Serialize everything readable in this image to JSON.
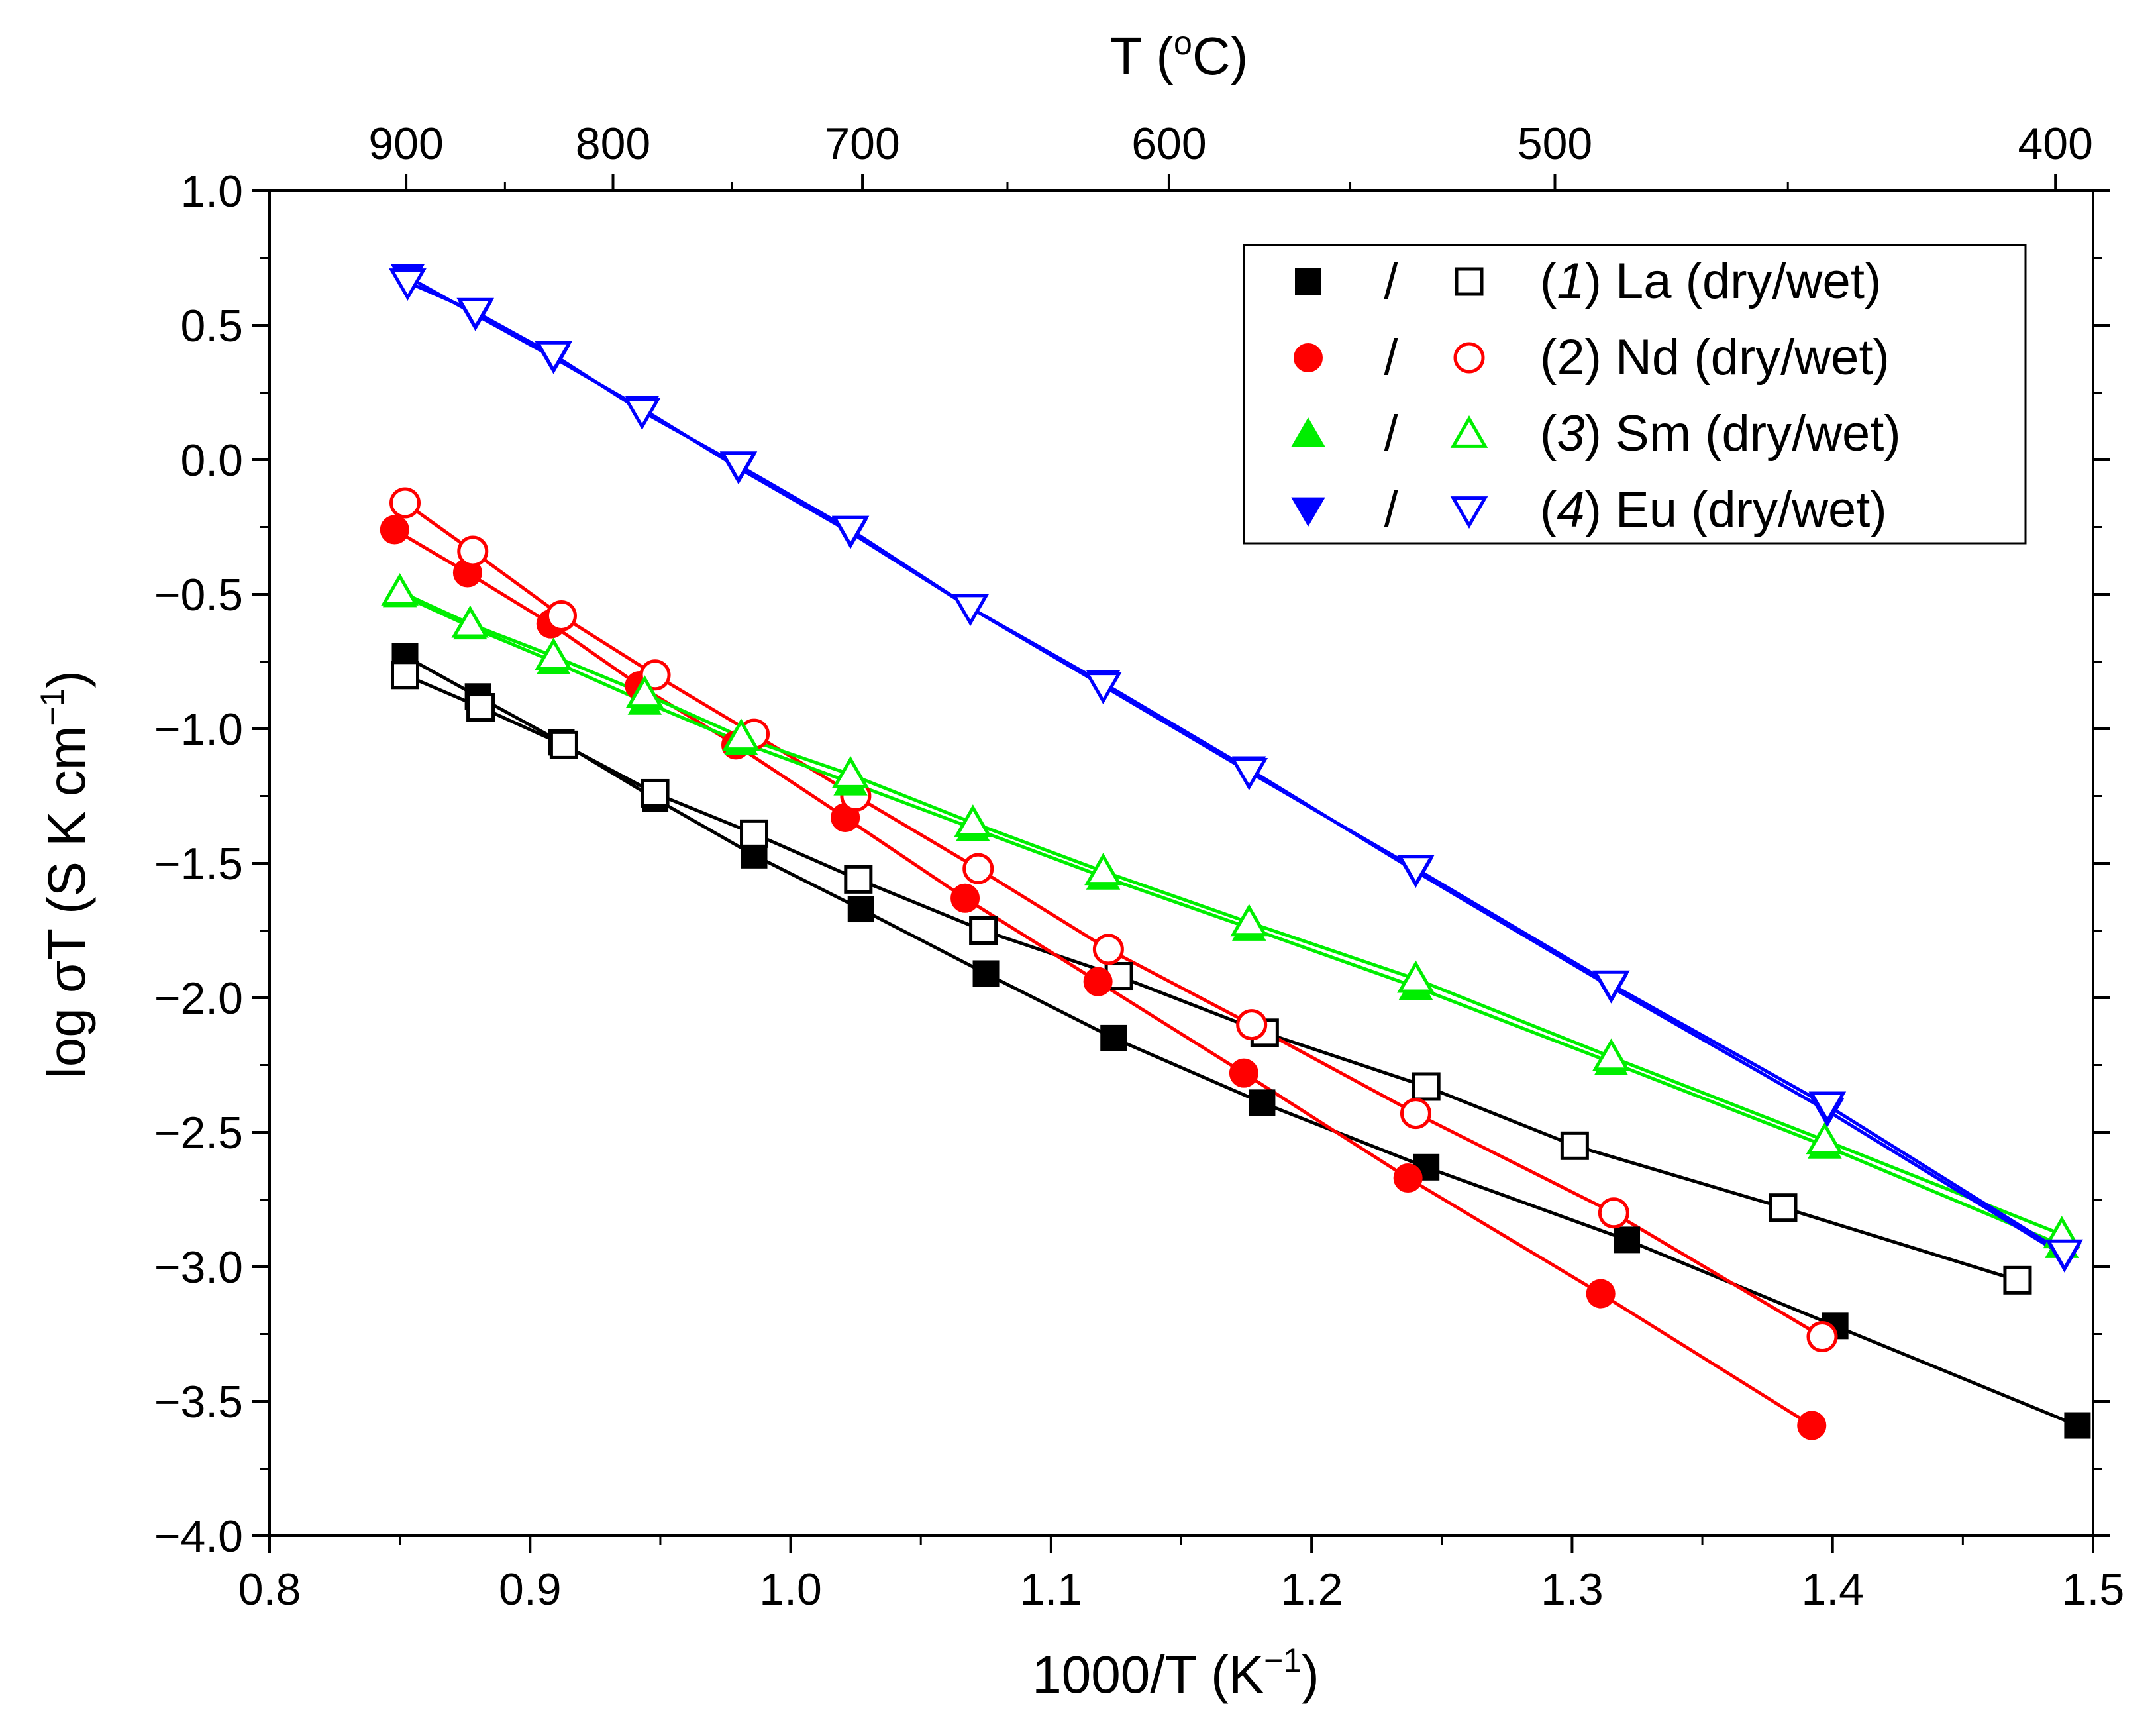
{
  "chart_data": {
    "type": "scatter",
    "title": "",
    "xlabel": {
      "base": "1000/T (K",
      "exp": "−1",
      "close": ")"
    },
    "ylabel": {
      "base": "log σT (S K cm",
      "exp": "−1",
      "close": ")"
    },
    "top_xlabel": {
      "pre": "T (",
      "exp": "o",
      "post": "C)"
    },
    "xlim": [
      0.8,
      1.5
    ],
    "ylim": [
      -4.0,
      1.0
    ],
    "x_ticks": [
      "0.8",
      "0.9",
      "1.0",
      "1.1",
      "1.2",
      "1.3",
      "1.4",
      "1.5"
    ],
    "y_ticks": [
      "1.0",
      "0.5",
      "0.0",
      "−0.5",
      "−1.0",
      "−1.5",
      "−2.0",
      "−2.5",
      "−3.0",
      "−3.5",
      "−4.0"
    ],
    "top_ticks": [
      "900",
      "800",
      "700",
      "600",
      "500",
      "400"
    ],
    "top_tick_celsius": [
      900,
      800,
      700,
      600,
      500,
      400
    ],
    "legend": {
      "placement": "top-right",
      "separator": "/",
      "entries": [
        {
          "open": "(",
          "num": "1",
          "close": ")",
          "text": " La (dry/wet)"
        },
        {
          "open": "(",
          "num": "2",
          "close": ")",
          "text": " Nd (dry/wet)"
        },
        {
          "open": "(",
          "num": "3",
          "close": ")",
          "text": " Sm (dry/wet)"
        },
        {
          "open": "(",
          "num": "4",
          "close": ")",
          "text": " Eu (dry/wet)"
        }
      ]
    },
    "series": [
      {
        "name": "La dry",
        "color": "#000000",
        "marker": "square",
        "filled": true,
        "x": [
          0.852,
          0.88,
          0.912,
          0.948,
          0.986,
          1.027,
          1.075,
          1.124,
          1.181,
          1.244,
          1.321,
          1.401,
          1.494
        ],
        "y": [
          -0.73,
          -0.88,
          -1.05,
          -1.26,
          -1.47,
          -1.67,
          -1.91,
          -2.15,
          -2.39,
          -2.63,
          -2.9,
          -3.22,
          -3.59
        ]
      },
      {
        "name": "La wet",
        "color": "#000000",
        "marker": "square",
        "filled": false,
        "x": [
          0.852,
          0.881,
          0.913,
          0.948,
          0.986,
          1.026,
          1.074,
          1.126,
          1.182,
          1.244,
          1.301,
          1.381,
          1.471
        ],
        "y": [
          -0.8,
          -0.92,
          -1.06,
          -1.24,
          -1.39,
          -1.56,
          -1.75,
          -1.92,
          -2.13,
          -2.33,
          -2.55,
          -2.78,
          -3.05
        ]
      },
      {
        "name": "Nd dry",
        "color": "#ff0000",
        "marker": "circle",
        "filled": true,
        "x": [
          0.848,
          0.876,
          0.908,
          0.942,
          0.979,
          1.021,
          1.067,
          1.118,
          1.174,
          1.237,
          1.311,
          1.392
        ],
        "y": [
          -0.26,
          -0.42,
          -0.61,
          -0.84,
          -1.06,
          -1.33,
          -1.63,
          -1.94,
          -2.28,
          -2.67,
          -3.1,
          -3.59
        ]
      },
      {
        "name": "Nd wet",
        "color": "#ff0000",
        "marker": "circle",
        "filled": false,
        "x": [
          0.852,
          0.878,
          0.912,
          0.948,
          0.986,
          1.025,
          1.072,
          1.122,
          1.177,
          1.24,
          1.316,
          1.396
        ],
        "y": [
          -0.16,
          -0.34,
          -0.58,
          -0.8,
          -1.02,
          -1.25,
          -1.52,
          -1.82,
          -2.1,
          -2.43,
          -2.8,
          -3.26
        ]
      },
      {
        "name": "Sm dry",
        "color": "#00ee00",
        "marker": "triangle-up",
        "filled": true,
        "x": [
          0.85,
          0.877,
          0.909,
          0.944,
          0.981,
          1.023,
          1.07,
          1.12,
          1.176,
          1.24,
          1.315,
          1.397,
          1.488
        ],
        "y": [
          -0.5,
          -0.62,
          -0.75,
          -0.9,
          -1.05,
          -1.2,
          -1.37,
          -1.55,
          -1.74,
          -1.96,
          -2.24,
          -2.55,
          -2.92
        ]
      },
      {
        "name": "Sm wet",
        "color": "#00ee00",
        "marker": "triangle-up",
        "filled": false,
        "x": [
          0.85,
          0.877,
          0.909,
          0.944,
          0.981,
          1.023,
          1.07,
          1.12,
          1.176,
          1.24,
          1.315,
          1.397,
          1.488
        ],
        "y": [
          -0.49,
          -0.61,
          -0.73,
          -0.87,
          -1.03,
          -1.17,
          -1.35,
          -1.53,
          -1.72,
          -1.93,
          -2.22,
          -2.53,
          -2.88
        ]
      },
      {
        "name": "Eu dry",
        "color": "#0000ff",
        "marker": "triangle-down",
        "filled": true,
        "x": [
          0.853,
          0.879,
          0.909,
          0.943,
          0.98,
          1.023,
          1.069,
          1.12,
          1.176,
          1.24,
          1.315,
          1.398,
          1.489
        ],
        "y": [
          0.68,
          0.54,
          0.38,
          0.19,
          -0.03,
          -0.27,
          -0.55,
          -0.83,
          -1.15,
          -1.53,
          -1.96,
          -2.42,
          -2.96
        ]
      },
      {
        "name": "Eu wet",
        "color": "#0000ff",
        "marker": "triangle-down",
        "filled": false,
        "x": [
          0.853,
          0.879,
          0.909,
          0.943,
          0.98,
          1.023,
          1.069,
          1.12,
          1.176,
          1.24,
          1.315,
          1.398,
          1.489
        ],
        "y": [
          0.66,
          0.55,
          0.39,
          0.18,
          -0.02,
          -0.26,
          -0.55,
          -0.84,
          -1.16,
          -1.52,
          -1.95,
          -2.4,
          -2.95
        ]
      }
    ]
  }
}
